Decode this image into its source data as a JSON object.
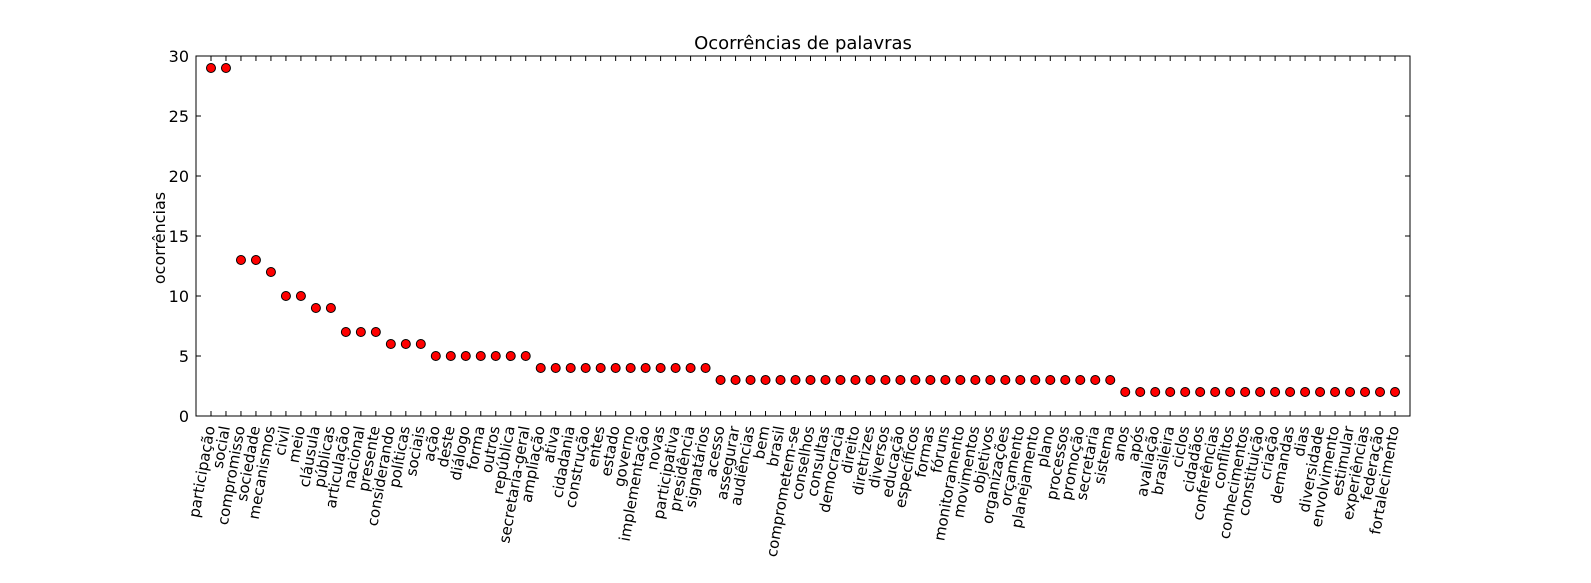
{
  "chart_data": {
    "type": "scatter",
    "title": "Ocorrências de palavras",
    "xlabel": "",
    "ylabel": "ocorrências",
    "ylim": [
      0,
      30
    ],
    "yticks": [
      0,
      5,
      10,
      15,
      20,
      25,
      30
    ],
    "grid": false,
    "legend": "none",
    "marker_color": "#ff0000",
    "marker_edge_color": "#000000",
    "categories": [
      "participação",
      "social",
      "compromisso",
      "sociedade",
      "mecanismos",
      "civil",
      "meio",
      "cláusula",
      "públicas",
      "articulação",
      "nacional",
      "presente",
      "considerando",
      "políticas",
      "sociais",
      "ação",
      "deste",
      "diálogo",
      "forma",
      "outros",
      "república",
      "secretaria-geral",
      "ampliação",
      "ativa",
      "cidadania",
      "construção",
      "entes",
      "estado",
      "governo",
      "implementação",
      "novas",
      "participativa",
      "presidência",
      "signatários",
      "acesso",
      "assegurar",
      "audiências",
      "bem",
      "brasil",
      "comprometem-se",
      "conselhos",
      "consultas",
      "democracia",
      "direito",
      "diretrizes",
      "diversos",
      "educação",
      "específicos",
      "formas",
      "fóruns",
      "monitoramento",
      "movimentos",
      "objetivos",
      "organizações",
      "orçamento",
      "planejamento",
      "plano",
      "processos",
      "promoção",
      "secretaria",
      "sistema",
      "anos",
      "após",
      "avaliação",
      "brasileira",
      "ciclos",
      "cidadãos",
      "conferências",
      "conflitos",
      "conhecimentos",
      "constituição",
      "criação",
      "demandas",
      "dias",
      "diversidade",
      "envolvimento",
      "estimular",
      "experiências",
      "federação",
      "fortalecimento"
    ],
    "values": [
      29,
      29,
      13,
      13,
      12,
      10,
      10,
      9,
      9,
      7,
      7,
      7,
      6,
      6,
      6,
      5,
      5,
      5,
      5,
      5,
      5,
      5,
      4,
      4,
      4,
      4,
      4,
      4,
      4,
      4,
      4,
      4,
      4,
      4,
      3,
      3,
      3,
      3,
      3,
      3,
      3,
      3,
      3,
      3,
      3,
      3,
      3,
      3,
      3,
      3,
      3,
      3,
      3,
      3,
      3,
      3,
      3,
      3,
      3,
      3,
      3,
      2,
      2,
      2,
      2,
      2,
      2,
      2,
      2,
      2,
      2,
      2,
      2,
      2,
      2,
      2,
      2,
      2,
      2,
      2
    ]
  }
}
